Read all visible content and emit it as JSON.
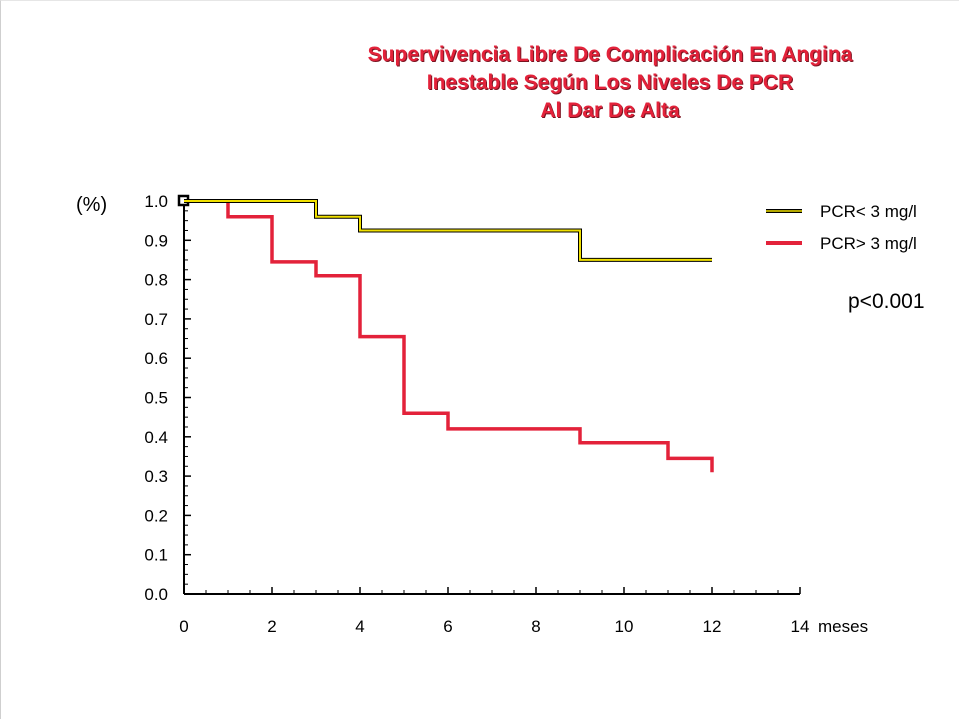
{
  "title": [
    "Supervivencia Libre De Complicación En Angina",
    "Inestable Según Los Niveles De PCR",
    "Al Dar De Alta"
  ],
  "colors": {
    "title": "#e3223a",
    "low_series": "#f0e000",
    "high_series": "#e3223a",
    "axis": "#000000"
  },
  "chart_data": {
    "type": "line",
    "title": "Supervivencia Libre De Complicación En Angina Inestable Según Los Niveles De PCR Al Dar De Alta",
    "xlabel": "meses",
    "ylabel": "(%)",
    "xlim": [
      0,
      14
    ],
    "ylim": [
      0,
      1.0
    ],
    "x_ticks": [
      "0",
      "2",
      "4",
      "6",
      "8",
      "10",
      "12",
      "14"
    ],
    "y_ticks": [
      "0.0",
      "0.1",
      "0.2",
      "0.3",
      "0.4",
      "0.5",
      "0.6",
      "0.7",
      "0.8",
      "0.9",
      "1.0"
    ],
    "step": true,
    "grid": false,
    "legend": "right",
    "annotation": "p<0.001",
    "series": [
      {
        "name": "PCR< 3 mg/l",
        "color": "#f0e000",
        "x": [
          0,
          3,
          3,
          4,
          4,
          9,
          9,
          12
        ],
        "y": [
          1.0,
          1.0,
          0.96,
          0.96,
          0.925,
          0.925,
          0.85,
          0.85
        ]
      },
      {
        "name": "PCR> 3 mg/l",
        "color": "#e3223a",
        "x": [
          1,
          1,
          2,
          2,
          3,
          3,
          4,
          4,
          5,
          5,
          6,
          6,
          9,
          9,
          11,
          11,
          12,
          12
        ],
        "y": [
          1.0,
          0.96,
          0.96,
          0.845,
          0.845,
          0.81,
          0.81,
          0.655,
          0.655,
          0.46,
          0.46,
          0.42,
          0.42,
          0.385,
          0.385,
          0.345,
          0.345,
          0.31
        ]
      }
    ]
  }
}
